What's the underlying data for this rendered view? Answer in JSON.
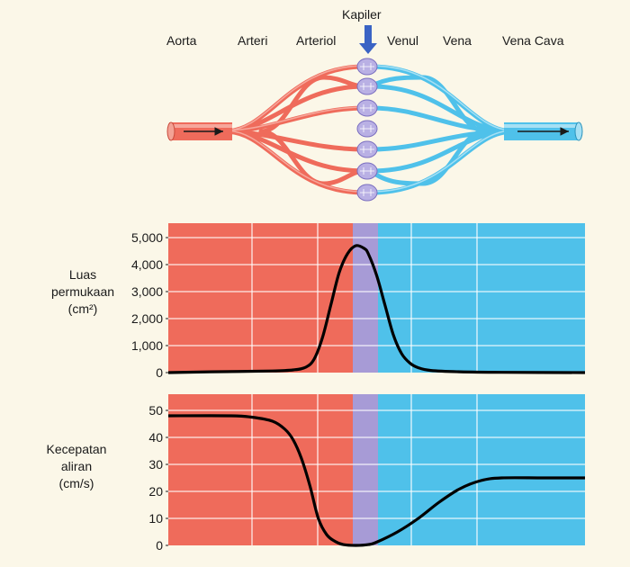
{
  "vessels": {
    "capillary_label": "Kapiler",
    "labels": [
      "Aorta",
      "Arteri",
      "Arteriol",
      "Venul",
      "Vena",
      "Vena Cava"
    ]
  },
  "colors": {
    "artery": "#ef6b5b",
    "vein": "#4fc1ea",
    "capillary": "#a79bd6",
    "curve": "#000000",
    "background": "#fbf7e8"
  },
  "chart_data": [
    {
      "type": "line",
      "ylabel": [
        "Luas",
        "permukaan",
        "(cm²)"
      ],
      "yticks": [
        "5,000",
        "4,000",
        "3,000",
        "2,000",
        "1,000",
        "0"
      ],
      "ylim": [
        0,
        5000
      ],
      "grid": true,
      "regions": [
        "Aorta",
        "Arteri",
        "Arteriol",
        "Kapiler",
        "Venul",
        "Vena",
        "Vena Cava"
      ],
      "series": [
        {
          "x": [
            0,
            0.1,
            0.25,
            0.3,
            0.33,
            0.35,
            0.37,
            0.39,
            0.41,
            0.43,
            0.45,
            0.47,
            0.48,
            0.5,
            0.52,
            0.54,
            0.56,
            0.58,
            0.6,
            0.63,
            0.7,
            0.8,
            1.0
          ],
          "values": [
            0,
            30,
            60,
            100,
            200,
            500,
            1300,
            2500,
            3700,
            4400,
            4700,
            4600,
            4400,
            3600,
            2500,
            1400,
            700,
            350,
            180,
            80,
            30,
            10,
            0
          ]
        }
      ]
    },
    {
      "type": "line",
      "ylabel": [
        "Kecepatan",
        "aliran",
        "(cm/s)"
      ],
      "yticks": [
        "50",
        "40",
        "30",
        "20",
        "10",
        "0"
      ],
      "ylim": [
        0,
        50
      ],
      "grid": true,
      "regions": [
        "Aorta",
        "Arteri",
        "Arteriol",
        "Kapiler",
        "Venul",
        "Vena",
        "Vena Cava"
      ],
      "series": [
        {
          "x": [
            0,
            0.15,
            0.2,
            0.25,
            0.28,
            0.3,
            0.32,
            0.34,
            0.36,
            0.38,
            0.4,
            0.42,
            0.45,
            0.48,
            0.5,
            0.55,
            0.6,
            0.65,
            0.7,
            0.75,
            0.8,
            0.9,
            1.0
          ],
          "values": [
            48,
            48,
            47.5,
            46,
            43,
            39,
            32,
            22,
            10,
            4,
            1.5,
            0.3,
            0,
            0.3,
            1.2,
            5,
            10,
            16,
            21,
            24,
            25,
            25,
            25
          ]
        }
      ]
    }
  ]
}
